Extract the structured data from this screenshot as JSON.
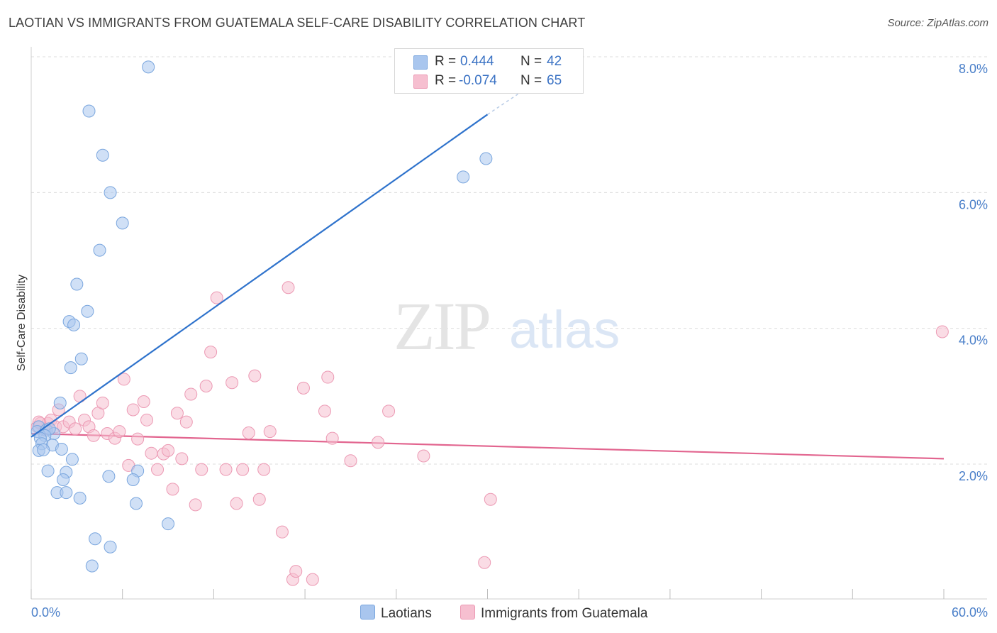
{
  "title": "LAOTIAN VS IMMIGRANTS FROM GUATEMALA SELF-CARE DISABILITY CORRELATION CHART",
  "source": "Source: ZipAtlas.com",
  "watermark": {
    "left": "ZIP",
    "right": "atlas"
  },
  "legend": {
    "rows": [
      {
        "r_label": "R =",
        "r_value": "0.444",
        "n_label": "N =",
        "n_value": "42"
      },
      {
        "r_label": "R =",
        "r_value": "-0.074",
        "n_label": "N =",
        "n_value": "65"
      }
    ]
  },
  "bottom_legend": {
    "laotians": "Laotians",
    "guatemala": "Immigrants from Guatemala"
  },
  "colors": {
    "blue_fill": "#a9c6ee",
    "blue_stroke": "#7aa6de",
    "blue_line": "#2f73cc",
    "pink_fill": "#f6bfd0",
    "pink_stroke": "#ec9ab4",
    "pink_line": "#e2658f",
    "grid": "#dcdcdc",
    "tick_text": "#4a7fc9"
  },
  "chart_data": {
    "type": "scatter",
    "title": "LAOTIAN VS IMMIGRANTS FROM GUATEMALA SELF-CARE DISABILITY CORRELATION CHART",
    "xlabel": "",
    "ylabel": "Self-Care Disability",
    "xlim": [
      0,
      60
    ],
    "ylim": [
      0,
      8.4
    ],
    "x_tick_labels": [
      "0.0%",
      "60.0%"
    ],
    "y_ticks": [
      2,
      4,
      6,
      8
    ],
    "y_tick_labels": [
      "2.0%",
      "4.0%",
      "6.0%",
      "8.0%"
    ],
    "grid": true,
    "series": [
      {
        "name": "Laotians",
        "r": 0.444,
        "n": 42,
        "trend": {
          "x": [
            0,
            30.0
          ],
          "y": [
            2.4,
            7.15
          ],
          "dashed_to": [
            32.0,
            7.45
          ]
        },
        "points": [
          [
            7.7,
            7.85
          ],
          [
            3.8,
            7.2
          ],
          [
            4.7,
            6.55
          ],
          [
            5.2,
            6.0
          ],
          [
            6.0,
            5.55
          ],
          [
            4.5,
            5.15
          ],
          [
            3.0,
            4.65
          ],
          [
            3.7,
            4.25
          ],
          [
            2.5,
            4.1
          ],
          [
            2.8,
            4.05
          ],
          [
            3.3,
            3.55
          ],
          [
            2.6,
            3.42
          ],
          [
            1.9,
            2.9
          ],
          [
            0.5,
            2.55
          ],
          [
            0.4,
            2.48
          ],
          [
            1.0,
            2.5
          ],
          [
            1.5,
            2.45
          ],
          [
            1.2,
            2.52
          ],
          [
            0.9,
            2.42
          ],
          [
            0.6,
            2.38
          ],
          [
            0.7,
            2.3
          ],
          [
            1.4,
            2.28
          ],
          [
            0.5,
            2.2
          ],
          [
            2.0,
            2.22
          ],
          [
            0.8,
            2.21
          ],
          [
            2.7,
            2.07
          ],
          [
            1.1,
            1.9
          ],
          [
            2.3,
            1.88
          ],
          [
            5.1,
            1.82
          ],
          [
            7.0,
            1.9
          ],
          [
            2.1,
            1.77
          ],
          [
            6.7,
            1.77
          ],
          [
            1.7,
            1.58
          ],
          [
            2.3,
            1.58
          ],
          [
            3.2,
            1.5
          ],
          [
            6.9,
            1.42
          ],
          [
            9.0,
            1.12
          ],
          [
            4.2,
            0.9
          ],
          [
            5.2,
            0.78
          ],
          [
            4.0,
            0.5
          ],
          [
            28.4,
            6.23
          ],
          [
            29.9,
            6.5
          ]
        ]
      },
      {
        "name": "Immigrants from Guatemala",
        "r": -0.074,
        "n": 65,
        "trend": {
          "x": [
            0,
            60
          ],
          "y": [
            2.45,
            2.08
          ]
        },
        "points": [
          [
            0.4,
            2.55
          ],
          [
            0.6,
            2.6
          ],
          [
            0.9,
            2.5
          ],
          [
            1.1,
            2.6
          ],
          [
            1.3,
            2.65
          ],
          [
            1.6,
            2.55
          ],
          [
            1.8,
            2.8
          ],
          [
            2.1,
            2.55
          ],
          [
            2.5,
            2.62
          ],
          [
            2.9,
            2.52
          ],
          [
            3.2,
            3.0
          ],
          [
            3.5,
            2.65
          ],
          [
            3.8,
            2.55
          ],
          [
            4.1,
            2.42
          ],
          [
            4.4,
            2.75
          ],
          [
            4.7,
            2.9
          ],
          [
            5.0,
            2.45
          ],
          [
            5.5,
            2.38
          ],
          [
            5.8,
            2.48
          ],
          [
            6.1,
            3.25
          ],
          [
            6.4,
            1.98
          ],
          [
            6.7,
            2.8
          ],
          [
            7.0,
            2.37
          ],
          [
            7.4,
            2.92
          ],
          [
            7.6,
            2.65
          ],
          [
            7.9,
            2.16
          ],
          [
            8.3,
            1.92
          ],
          [
            8.7,
            2.15
          ],
          [
            9.0,
            2.2
          ],
          [
            9.3,
            1.63
          ],
          [
            9.6,
            2.75
          ],
          [
            9.9,
            2.08
          ],
          [
            10.2,
            2.62
          ],
          [
            10.5,
            3.03
          ],
          [
            10.8,
            1.4
          ],
          [
            11.2,
            1.92
          ],
          [
            11.5,
            3.15
          ],
          [
            11.8,
            3.65
          ],
          [
            12.2,
            4.45
          ],
          [
            12.8,
            1.92
          ],
          [
            13.2,
            3.2
          ],
          [
            13.5,
            1.42
          ],
          [
            13.9,
            1.92
          ],
          [
            14.3,
            2.46
          ],
          [
            14.7,
            3.3
          ],
          [
            15.0,
            1.48
          ],
          [
            15.3,
            1.92
          ],
          [
            15.7,
            2.48
          ],
          [
            16.5,
            1.0
          ],
          [
            16.9,
            4.6
          ],
          [
            17.2,
            0.3
          ],
          [
            17.4,
            0.42
          ],
          [
            17.9,
            3.12
          ],
          [
            18.5,
            0.3
          ],
          [
            19.3,
            2.78
          ],
          [
            19.5,
            3.28
          ],
          [
            19.8,
            2.38
          ],
          [
            21.0,
            2.05
          ],
          [
            22.8,
            2.32
          ],
          [
            23.5,
            2.78
          ],
          [
            25.8,
            2.12
          ],
          [
            29.8,
            0.55
          ],
          [
            30.2,
            1.48
          ],
          [
            59.9,
            3.95
          ],
          [
            0.5,
            2.62
          ]
        ]
      }
    ]
  }
}
